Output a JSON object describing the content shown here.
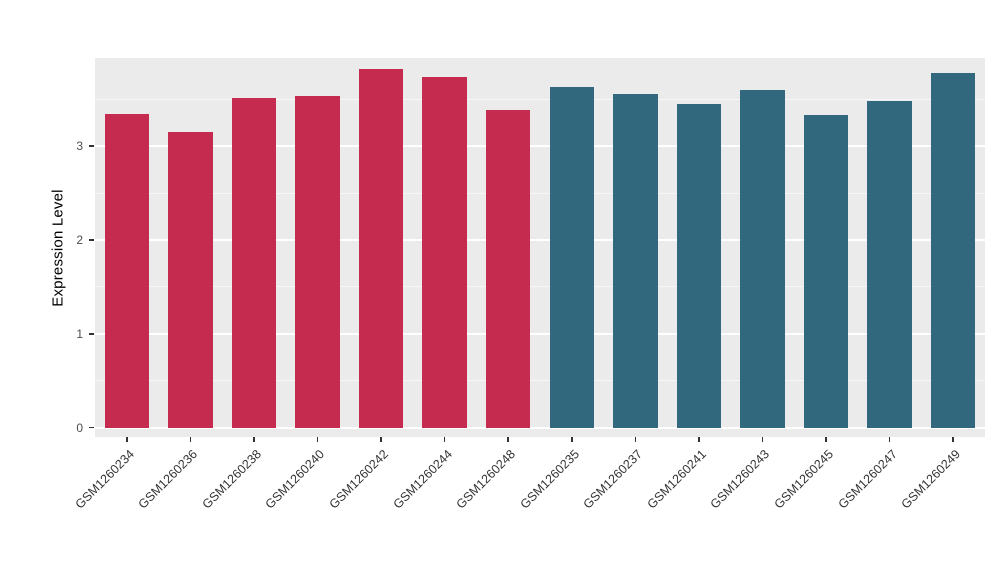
{
  "chart_data": {
    "type": "bar",
    "title": "",
    "xlabel": "",
    "ylabel": "Expression Level",
    "categories": [
      "GSM1260234",
      "GSM1260236",
      "GSM1260238",
      "GSM1260240",
      "GSM1260242",
      "GSM1260244",
      "GSM1260248",
      "GSM1260235",
      "GSM1260237",
      "GSM1260241",
      "GSM1260243",
      "GSM1260245",
      "GSM1260247",
      "GSM1260249"
    ],
    "values": [
      3.34,
      3.15,
      3.51,
      3.54,
      3.82,
      3.74,
      3.39,
      3.63,
      3.56,
      3.45,
      3.6,
      3.33,
      3.48,
      3.78
    ],
    "groups": [
      "group1",
      "group1",
      "group1",
      "group1",
      "group1",
      "group1",
      "group1",
      "group2",
      "group2",
      "group2",
      "group2",
      "group2",
      "group2",
      "group2"
    ],
    "colors": {
      "group1": "#C42B4F",
      "group2": "#31687D"
    },
    "ylim": [
      0,
      3.94
    ],
    "yticks": [
      0,
      1,
      2,
      3
    ],
    "yticks_minor": [
      0.5,
      1.5,
      2.5,
      3.5
    ],
    "legend": "none",
    "grid": "horizontal major+minor, white on gray panel",
    "panel_background": "#EBEBEB",
    "bar_width_fraction": 0.7,
    "x_label_rotation_deg": 45
  }
}
